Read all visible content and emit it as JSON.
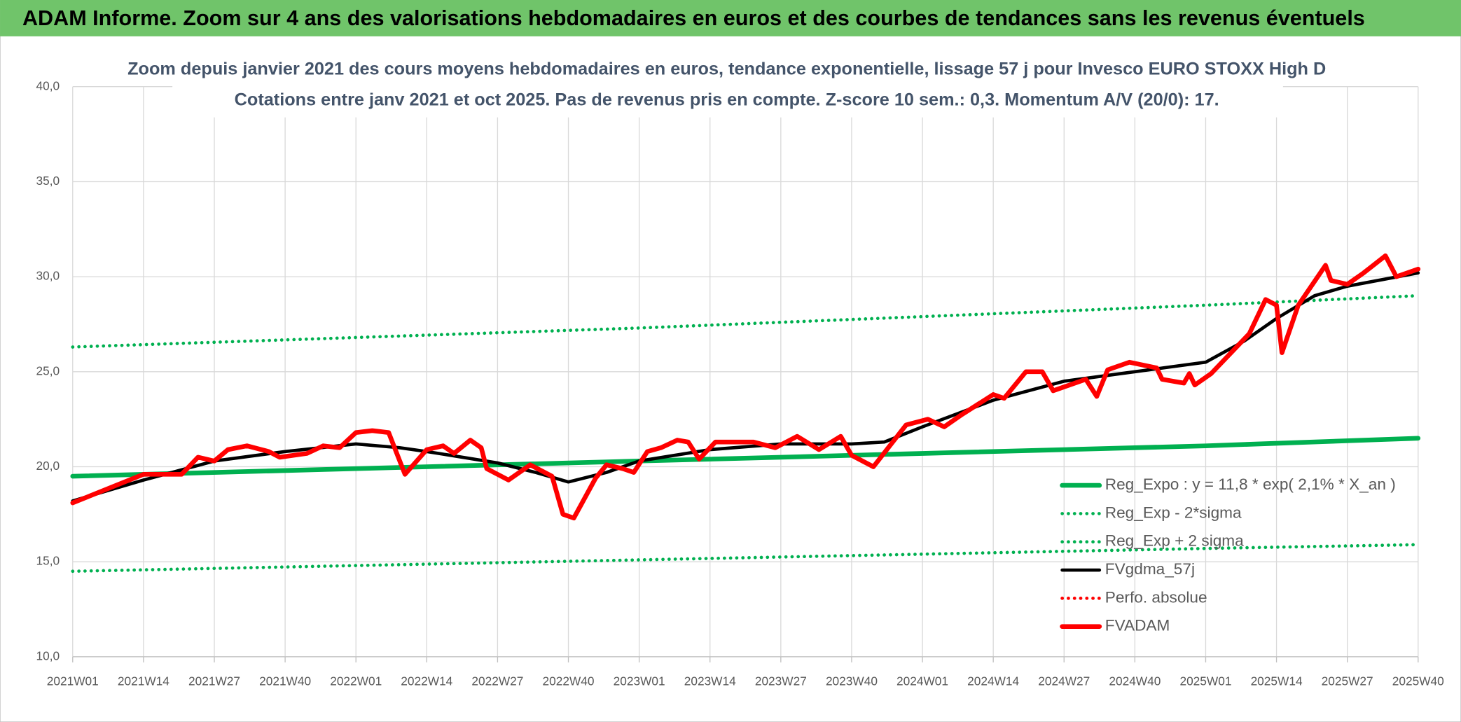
{
  "page_title": "ADAM Informe. Zoom sur 4 ans des valorisations hebdomadaires en euros et des courbes de tendances sans les revenus éventuels",
  "chart_data": {
    "type": "line",
    "title": "Zoom depuis janvier 2021 des cours moyens hebdomadaires en euros, tendance exponentielle, lissage 57 j pour Invesco EURO STOXX High D",
    "subtitle": "Cotations entre janv 2021 et oct 2025. Pas de revenus pris en compte. Z-score 10 sem.: 0,3. Momentum A/V (20/0): 17.",
    "xlim": [
      0,
      247
    ],
    "xticks": [
      {
        "value": 0,
        "label": "2021W01"
      },
      {
        "value": 13,
        "label": "2021W14"
      },
      {
        "value": 26,
        "label": "2021W27"
      },
      {
        "value": 39,
        "label": "2021W40"
      },
      {
        "value": 52,
        "label": "2022W01"
      },
      {
        "value": 65,
        "label": "2022W14"
      },
      {
        "value": 78,
        "label": "2022W27"
      },
      {
        "value": 91,
        "label": "2022W40"
      },
      {
        "value": 104,
        "label": "2023W01"
      },
      {
        "value": 117,
        "label": "2023W14"
      },
      {
        "value": 130,
        "label": "2023W27"
      },
      {
        "value": 143,
        "label": "2023W40"
      },
      {
        "value": 156,
        "label": "2024W01"
      },
      {
        "value": 169,
        "label": "2024W14"
      },
      {
        "value": 182,
        "label": "2024W27"
      },
      {
        "value": 195,
        "label": "2024W40"
      },
      {
        "value": 208,
        "label": "2025W01"
      },
      {
        "value": 221,
        "label": "2025W14"
      },
      {
        "value": 234,
        "label": "2025W27"
      },
      {
        "value": 247,
        "label": "2025W40"
      }
    ],
    "ylim": [
      10,
      40
    ],
    "yticks": [
      {
        "value": 10,
        "label": "10,0"
      },
      {
        "value": 15,
        "label": "15,0"
      },
      {
        "value": 20,
        "label": "20,0"
      },
      {
        "value": 25,
        "label": "25,0"
      },
      {
        "value": 30,
        "label": "30,0"
      },
      {
        "value": 35,
        "label": "35,0"
      },
      {
        "value": 40,
        "label": "40,0"
      }
    ],
    "grid": true,
    "legend": "bottom-right",
    "series": [
      {
        "name": "Reg_Expo : y = 11,8 * exp( 2,1% *  X_an )",
        "color": "#00b050",
        "style": "solid",
        "x": [
          0,
          52,
          104,
          156,
          208,
          247
        ],
        "values": [
          19.5,
          19.9,
          20.3,
          20.7,
          21.1,
          21.5
        ]
      },
      {
        "name": "Reg_Exp - 2*sigma",
        "color": "#00b050",
        "style": "dotted",
        "x": [
          0,
          52,
          104,
          156,
          208,
          247
        ],
        "values": [
          14.5,
          14.8,
          15.1,
          15.4,
          15.7,
          15.9
        ]
      },
      {
        "name": "Reg_Exp + 2 sigma",
        "color": "#00b050",
        "style": "dotted",
        "x": [
          0,
          52,
          104,
          156,
          208,
          247
        ],
        "values": [
          26.3,
          26.8,
          27.3,
          27.9,
          28.5,
          29.0
        ]
      },
      {
        "name": "FVgdma_57j",
        "color": "#000000",
        "style": "solid",
        "x": [
          0,
          13,
          26,
          39,
          52,
          60,
          65,
          78,
          85,
          91,
          98,
          104,
          117,
          130,
          143,
          149,
          156,
          169,
          182,
          195,
          208,
          215,
          221,
          228,
          234,
          247
        ],
        "values": [
          18.2,
          19.3,
          20.3,
          20.8,
          21.2,
          21.0,
          20.8,
          20.2,
          19.7,
          19.2,
          19.7,
          20.3,
          20.9,
          21.2,
          21.2,
          21.3,
          22.1,
          23.5,
          24.5,
          25.0,
          25.5,
          26.6,
          27.8,
          29.0,
          29.5,
          30.2
        ]
      },
      {
        "name": "Perfo. absolue",
        "color": "#ff0000",
        "style": "dotted"
      },
      {
        "name": "FVADAM",
        "color": "#ff0000",
        "style": "solid",
        "x": [
          0,
          13,
          20,
          23,
          26,
          28.5,
          32,
          36,
          38,
          43,
          46,
          49,
          52,
          55,
          58,
          61,
          65,
          68,
          70,
          73,
          75,
          76,
          80,
          84,
          88,
          90,
          92,
          96,
          98,
          101,
          103,
          105.5,
          108,
          111,
          113,
          115,
          118,
          125,
          129,
          133,
          137,
          141,
          143,
          147,
          153,
          157,
          160,
          163,
          169,
          171,
          175,
          178,
          180,
          186,
          188,
          190,
          194,
          199,
          200,
          204,
          205,
          206,
          209,
          213,
          216,
          219,
          221,
          222,
          225,
          230,
          231,
          234,
          237,
          241,
          243,
          247
        ],
        "values": [
          18.1,
          19.6,
          19.6,
          20.5,
          20.3,
          20.9,
          21.1,
          20.8,
          20.5,
          20.7,
          21.1,
          21.0,
          21.8,
          21.9,
          21.8,
          19.6,
          20.9,
          21.1,
          20.7,
          21.4,
          21.0,
          19.9,
          19.3,
          20.1,
          19.5,
          17.5,
          17.3,
          19.4,
          20.1,
          19.9,
          19.7,
          20.8,
          21.0,
          21.4,
          21.3,
          20.4,
          21.3,
          21.3,
          21.0,
          21.6,
          20.9,
          21.6,
          20.6,
          20.0,
          22.2,
          22.5,
          22.1,
          22.7,
          23.8,
          23.6,
          25.0,
          25.0,
          24.0,
          24.6,
          23.7,
          25.1,
          25.5,
          25.2,
          24.6,
          24.4,
          24.9,
          24.3,
          24.9,
          26.1,
          27.0,
          28.8,
          28.5,
          26.0,
          28.5,
          30.6,
          29.8,
          29.6,
          30.2,
          31.1,
          30.0,
          30.4
        ]
      }
    ]
  }
}
